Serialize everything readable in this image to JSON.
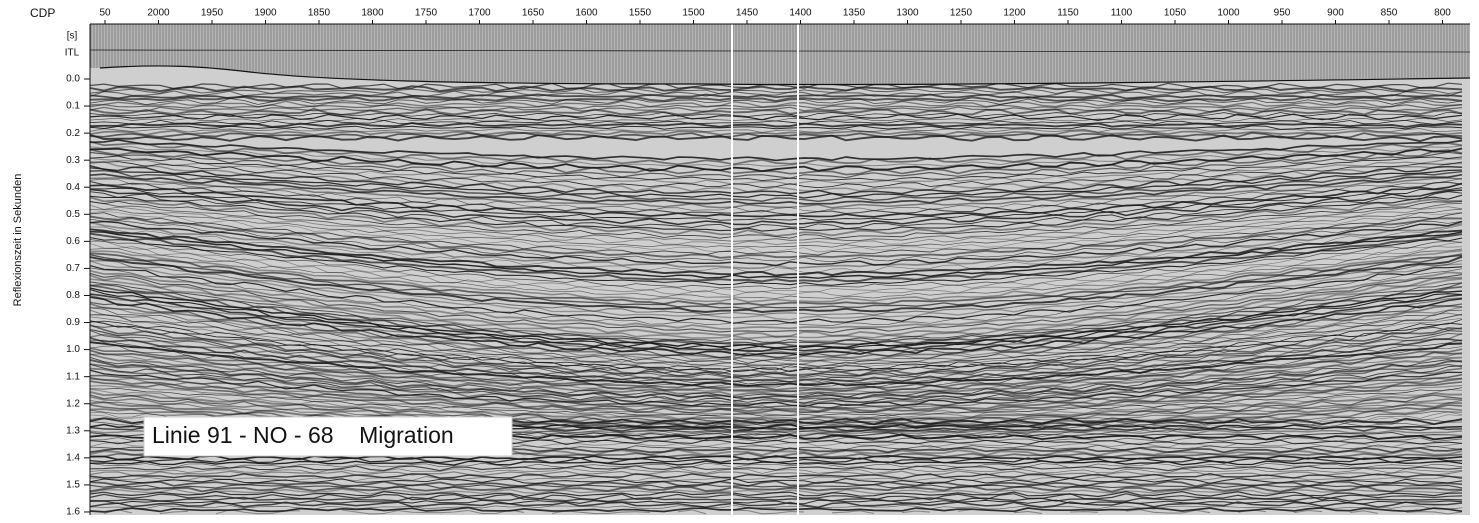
{
  "x_axis": {
    "label": "CDP",
    "ticks": [
      "50",
      "2000",
      "1950",
      "1900",
      "1850",
      "1800",
      "1750",
      "1700",
      "1650",
      "1600",
      "1550",
      "1500",
      "1450",
      "1400",
      "1350",
      "1300",
      "1250",
      "1200",
      "1150",
      "1100",
      "1050",
      "1000",
      "950",
      "900",
      "850",
      "800"
    ]
  },
  "y_axis": {
    "label": "Reflexionszeit in Sekunden",
    "unit": "[s]",
    "datum": "ITL",
    "ticks": [
      "0.0",
      "0.1",
      "0.2",
      "0.3",
      "0.4",
      "0.5",
      "0.6",
      "0.7",
      "0.8",
      "0.9",
      "1.0",
      "1.1",
      "1.2",
      "1.3",
      "1.4",
      "1.5",
      "1.6"
    ]
  },
  "caption": "Linie 91 - NO - 68    Migration"
}
